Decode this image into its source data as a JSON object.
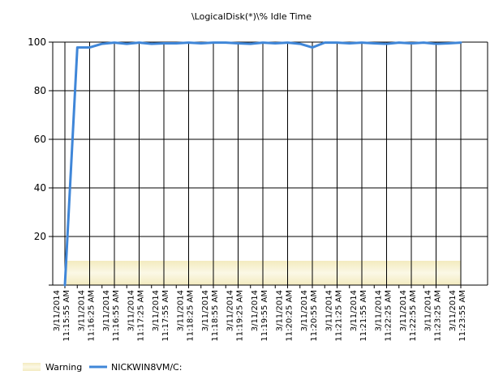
{
  "chart_data": {
    "type": "line",
    "title": "\\LogicalDisk(*)\\% Idle Time",
    "xlabel": "",
    "ylabel": "",
    "ylim": [
      0,
      100
    ],
    "yticks": [
      20,
      40,
      60,
      80,
      100
    ],
    "grid": true,
    "x_categories": [
      [
        "3/11/2014",
        "11:15:55 AM"
      ],
      [
        "3/11/2014",
        "11:16:25 AM"
      ],
      [
        "3/11/2014",
        "11:16:55 AM"
      ],
      [
        "3/11/2014",
        "11:17:25 AM"
      ],
      [
        "3/11/2014",
        "11:17:55 AM"
      ],
      [
        "3/11/2014",
        "11:18:25 AM"
      ],
      [
        "3/11/2014",
        "11:18:55 AM"
      ],
      [
        "3/11/2014",
        "11:19:25 AM"
      ],
      [
        "3/11/2014",
        "11:19:55 AM"
      ],
      [
        "3/11/2014",
        "11:20:25 AM"
      ],
      [
        "3/11/2014",
        "11:20:55 AM"
      ],
      [
        "3/11/2014",
        "11:21:25 AM"
      ],
      [
        "3/11/2014",
        "11:21:55 AM"
      ],
      [
        "3/11/2014",
        "11:22:25 AM"
      ],
      [
        "3/11/2014",
        "11:22:55 AM"
      ],
      [
        "3/11/2014",
        "11:23:25 AM"
      ],
      [
        "3/11/2014",
        "11:23:55 AM"
      ]
    ],
    "warning_band": {
      "name": "Warning",
      "ymin": 0,
      "ymax": 10,
      "color": "#f2ecc0"
    },
    "series": [
      {
        "name": "NICKWIN8VM/C:",
        "color": "#3f86d8",
        "x": [
          0,
          0.5,
          1,
          1.5,
          2,
          2.5,
          3,
          3.5,
          4,
          4.5,
          5,
          5.5,
          6,
          6.5,
          7,
          7.5,
          8,
          8.5,
          9,
          9.5,
          10,
          10.5,
          11,
          11.5,
          12,
          12.5,
          13,
          13.5,
          14,
          14.5,
          15,
          15.5,
          16
        ],
        "values": [
          0,
          97.8,
          97.8,
          99.3,
          99.8,
          99.3,
          99.8,
          99.3,
          99.5,
          99.5,
          99.8,
          99.5,
          99.8,
          99.8,
          99.5,
          99.3,
          99.8,
          99.5,
          99.8,
          99.3,
          97.8,
          99.8,
          99.8,
          99.5,
          99.8,
          99.5,
          99.3,
          99.8,
          99.5,
          99.8,
          99.3,
          99.5,
          99.8
        ]
      }
    ],
    "legend_position": "bottom-left"
  }
}
